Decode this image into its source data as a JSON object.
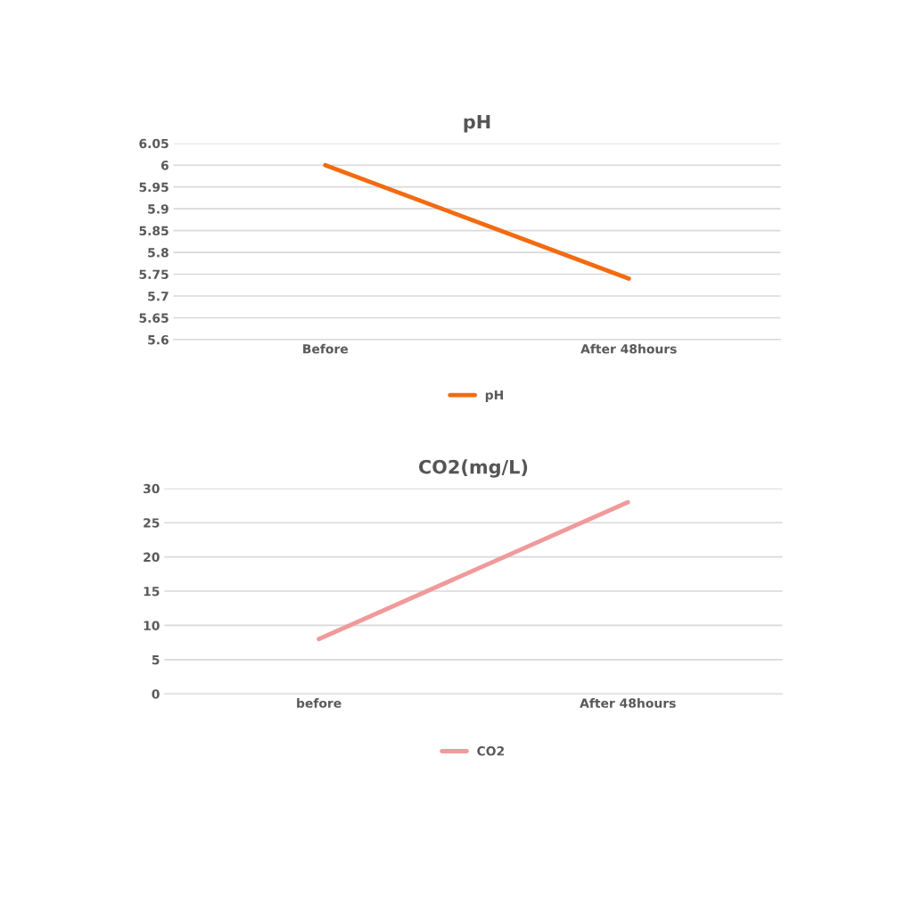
{
  "chart_data": [
    {
      "type": "line",
      "title": "pH",
      "categories": [
        "Before",
        "After 48hours"
      ],
      "series": [
        {
          "name": "pH",
          "color": "#f26b10",
          "values": [
            6.0,
            5.74
          ]
        }
      ],
      "ylim": [
        5.6,
        6.05
      ],
      "yticks": [
        {
          "value": 5.6,
          "label": "5.6"
        },
        {
          "value": 5.65,
          "label": "5.65"
        },
        {
          "value": 5.7,
          "label": "5.7"
        },
        {
          "value": 5.75,
          "label": "5.75"
        },
        {
          "value": 5.8,
          "label": "5.8"
        },
        {
          "value": 5.85,
          "label": "5.85"
        },
        {
          "value": 5.9,
          "label": "5.9"
        },
        {
          "value": 5.95,
          "label": "5.95"
        },
        {
          "value": 6.0,
          "label": "6"
        },
        {
          "value": 6.05,
          "label": "6.05"
        }
      ],
      "grid": "y",
      "legend": "bottom",
      "marker": "none",
      "line_style": "solid"
    },
    {
      "type": "line",
      "title": "CO2(mg/L)",
      "categories": [
        "before",
        "After 48hours"
      ],
      "series": [
        {
          "name": "CO2",
          "color": "#f09a9b",
          "values": [
            8,
            28
          ]
        }
      ],
      "ylim": [
        0,
        30
      ],
      "yticks": [
        0,
        5,
        10,
        15,
        20,
        25,
        30
      ],
      "grid": "y",
      "legend": "bottom",
      "marker": "none",
      "line_style": "solid"
    }
  ]
}
